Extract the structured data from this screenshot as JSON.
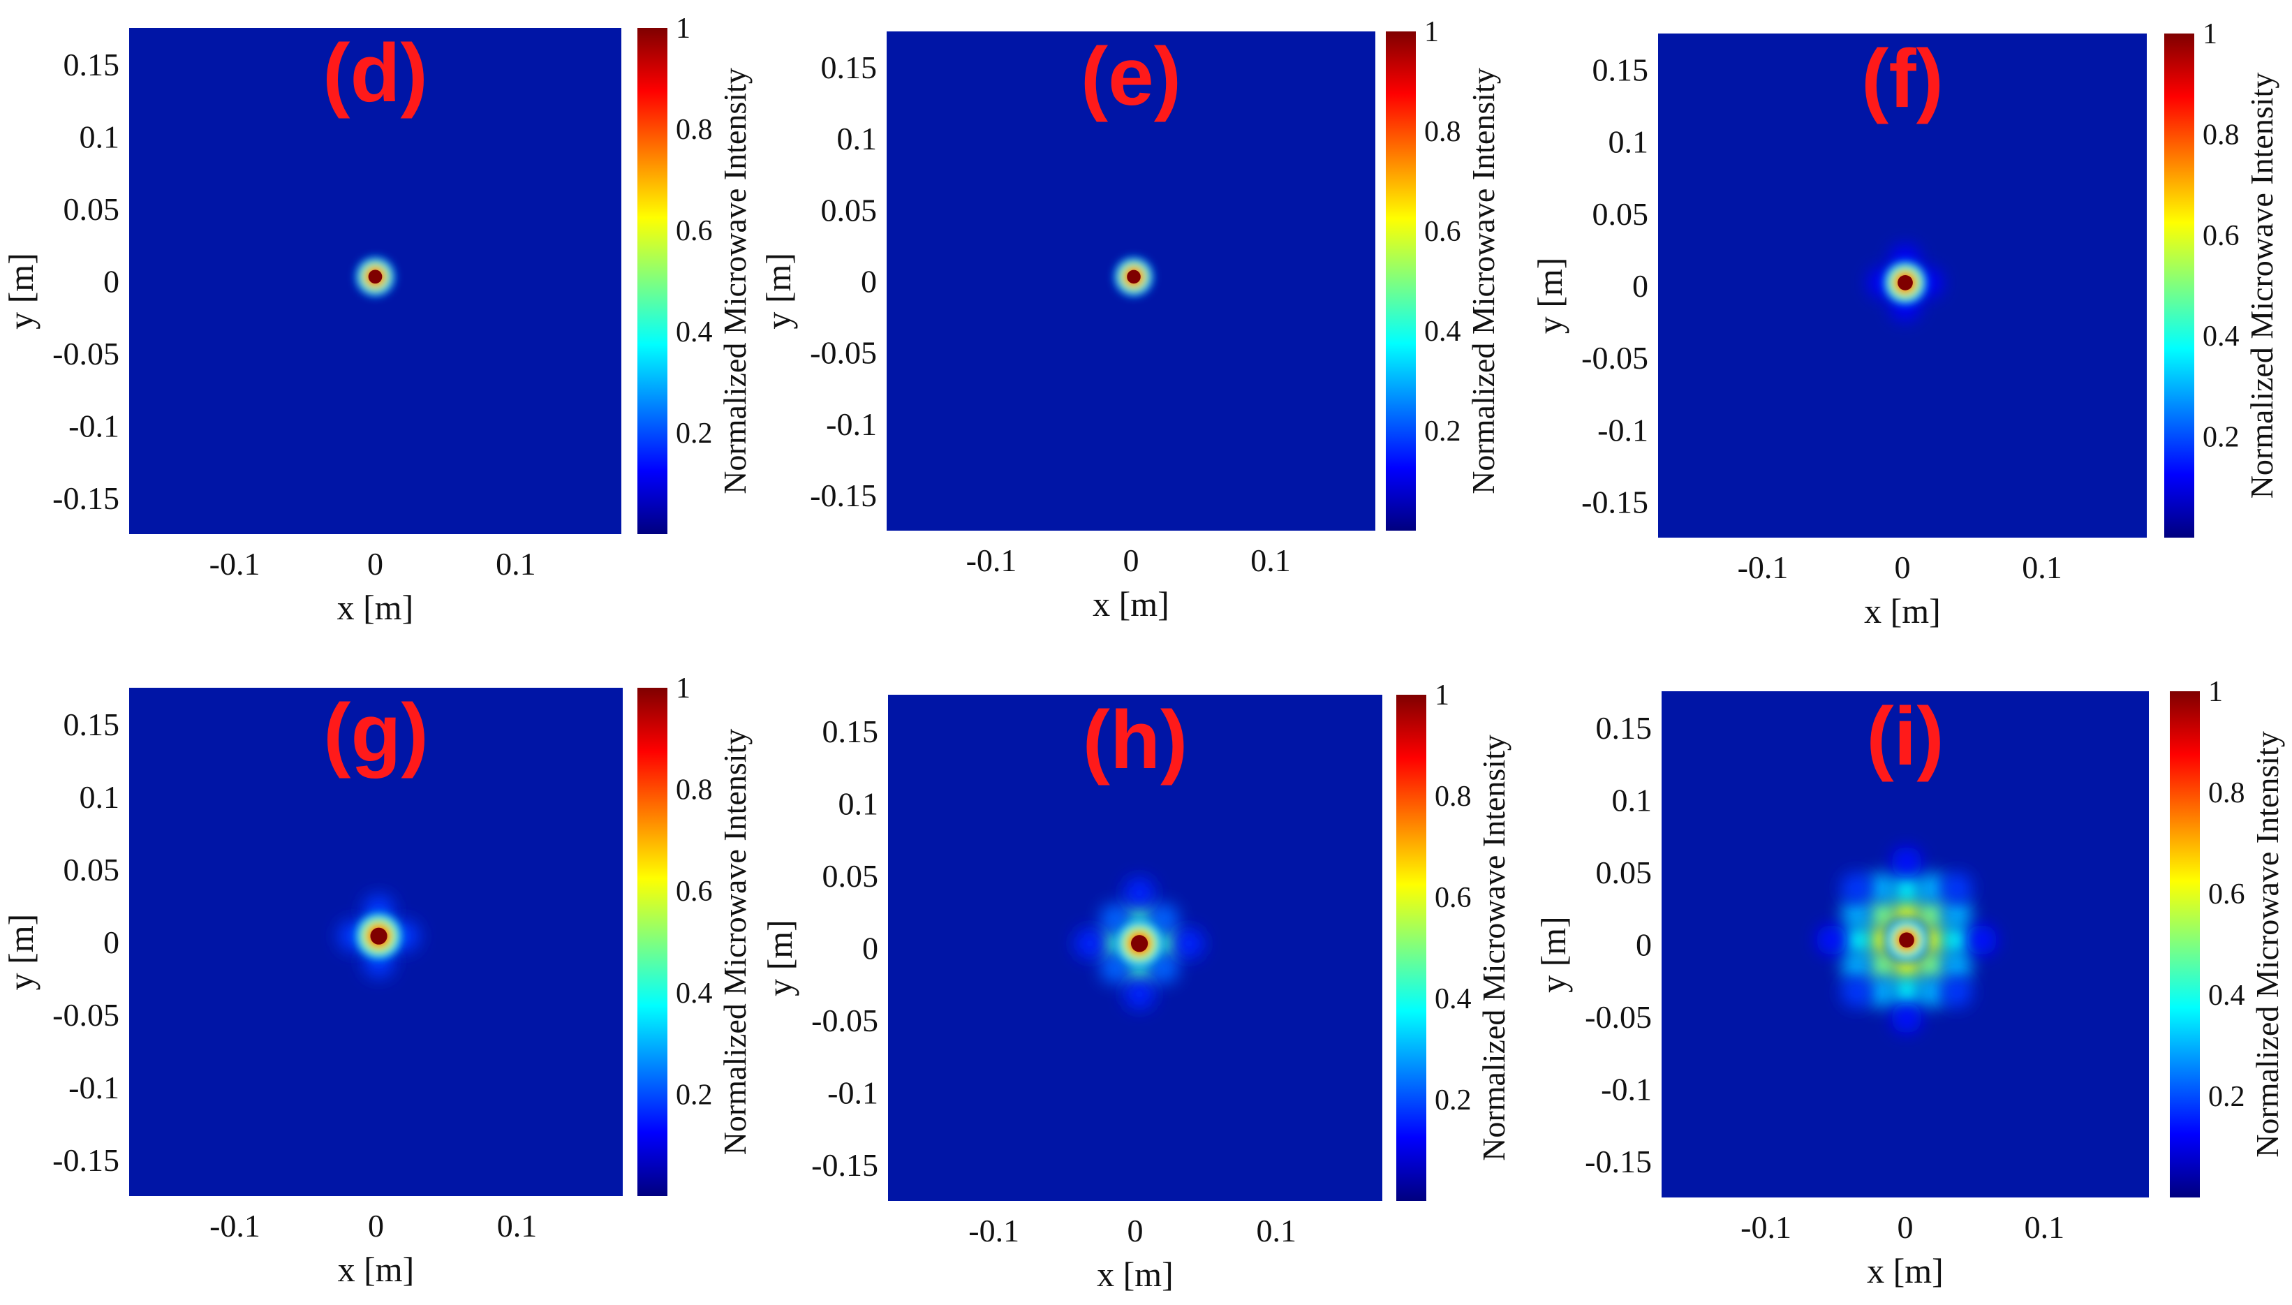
{
  "chart_data": [
    {
      "type": "heatmap",
      "panel": "(d)",
      "xlabel": "x  [m]",
      "ylabel": "y  [m]",
      "xlim": [
        -0.175,
        0.175
      ],
      "ylim": [
        -0.175,
        0.175
      ],
      "xticks": [
        -0.1,
        0,
        0.1
      ],
      "xtick_labels": [
        "-0.1",
        "0",
        "0.1"
      ],
      "yticks": [
        0.15,
        0.1,
        0.05,
        0,
        -0.05,
        -0.1,
        -0.15
      ],
      "ytick_labels": [
        "0.15",
        "0.1",
        "0.05",
        "0",
        "-0.05",
        "-0.1",
        "-0.15"
      ],
      "colorbar": {
        "label": "Normalized Microwave Intensity",
        "range": [
          0,
          1
        ],
        "ticks": [
          1,
          0.8,
          0.6,
          0.4,
          0.2
        ],
        "tick_labels": [
          "1",
          "0.8",
          "0.6",
          "0.4",
          "0.2"
        ],
        "colormap": "jet"
      },
      "peak": {
        "x": 0.0,
        "y": 0.003,
        "intensity": 1.0
      },
      "main_lobe_radius_m": 0.009,
      "sidelobes": []
    },
    {
      "type": "heatmap",
      "panel": "(e)",
      "xlabel": "x  [m]",
      "ylabel": "y  [m]",
      "xlim": [
        -0.175,
        0.175
      ],
      "ylim": [
        -0.175,
        0.175
      ],
      "xticks": [
        -0.1,
        0,
        0.1
      ],
      "xtick_labels": [
        "-0.1",
        "0",
        "0.1"
      ],
      "yticks": [
        0.15,
        0.1,
        0.05,
        0,
        -0.05,
        -0.1,
        -0.15
      ],
      "ytick_labels": [
        "0.15",
        "0.1",
        "0.05",
        "0",
        "-0.05",
        "-0.1",
        "-0.15"
      ],
      "colorbar": {
        "label": "Normalized Microwave Intensity",
        "range": [
          0,
          1
        ],
        "ticks": [
          1,
          0.8,
          0.6,
          0.4,
          0.2
        ],
        "tick_labels": [
          "1",
          "0.8",
          "0.6",
          "0.4",
          "0.2"
        ],
        "colormap": "jet"
      },
      "peak": {
        "x": 0.002,
        "y": 0.003,
        "intensity": 1.0
      },
      "main_lobe_radius_m": 0.009,
      "sidelobes": []
    },
    {
      "type": "heatmap",
      "panel": "(f)",
      "xlabel": "x  [m]",
      "ylabel": "y  [m]",
      "xlim": [
        -0.175,
        0.175
      ],
      "ylim": [
        -0.175,
        0.175
      ],
      "xticks": [
        -0.1,
        0,
        0.1
      ],
      "xtick_labels": [
        "-0.1",
        "0",
        "0.1"
      ],
      "yticks": [
        0.15,
        0.1,
        0.05,
        0,
        -0.05,
        -0.1,
        -0.15
      ],
      "ytick_labels": [
        "0.15",
        "0.1",
        "0.05",
        "0",
        "-0.05",
        "-0.1",
        "-0.15"
      ],
      "colorbar": {
        "label": "Normalized Microwave Intensity",
        "range": [
          0,
          1
        ],
        "ticks": [
          1,
          0.8,
          0.6,
          0.4,
          0.2
        ],
        "tick_labels": [
          "1",
          "0.8",
          "0.6",
          "0.4",
          "0.2"
        ],
        "colormap": "jet"
      },
      "peak": {
        "x": 0.002,
        "y": 0.002,
        "intensity": 1.0
      },
      "main_lobe_radius_m": 0.01,
      "sidelobes": [
        {
          "x": 0.018,
          "y": 0.002,
          "intensity": 0.12
        },
        {
          "x": -0.014,
          "y": 0.002,
          "intensity": 0.12
        },
        {
          "x": 0.002,
          "y": 0.018,
          "intensity": 0.12
        },
        {
          "x": 0.002,
          "y": -0.014,
          "intensity": 0.12
        }
      ]
    },
    {
      "type": "heatmap",
      "panel": "(g)",
      "xlabel": "x  [m]",
      "ylabel": "y  [m]",
      "xlim": [
        -0.175,
        0.175
      ],
      "ylim": [
        -0.175,
        0.175
      ],
      "xticks": [
        -0.1,
        0,
        0.1
      ],
      "xtick_labels": [
        "-0.1",
        "0",
        "0.1"
      ],
      "yticks": [
        0.15,
        0.1,
        0.05,
        0,
        -0.05,
        -0.1,
        -0.15
      ],
      "ytick_labels": [
        "0.15",
        "0.1",
        "0.05",
        "0",
        "-0.05",
        "-0.1",
        "-0.15"
      ],
      "colorbar": {
        "label": "Normalized Microwave Intensity",
        "range": [
          0,
          1
        ],
        "ticks": [
          1,
          0.8,
          0.6,
          0.4,
          0.2
        ],
        "tick_labels": [
          "1",
          "0.8",
          "0.6",
          "0.4",
          "0.2"
        ],
        "colormap": "jet"
      },
      "peak": {
        "x": 0.002,
        "y": 0.004,
        "intensity": 1.0
      },
      "main_lobe_radius_m": 0.011,
      "sidelobes": [
        {
          "x": 0.02,
          "y": 0.004,
          "intensity": 0.18
        },
        {
          "x": -0.016,
          "y": 0.004,
          "intensity": 0.18
        },
        {
          "x": 0.002,
          "y": 0.022,
          "intensity": 0.18
        },
        {
          "x": 0.002,
          "y": -0.014,
          "intensity": 0.18
        }
      ]
    },
    {
      "type": "heatmap",
      "panel": "(h)",
      "xlabel": "x  [m]",
      "ylabel": "y  [m]",
      "xlim": [
        -0.175,
        0.175
      ],
      "ylim": [
        -0.175,
        0.175
      ],
      "xticks": [
        -0.1,
        0,
        0.1
      ],
      "xtick_labels": [
        "-0.1",
        "0",
        "0.1"
      ],
      "yticks": [
        0.15,
        0.1,
        0.05,
        0,
        -0.05,
        -0.1,
        -0.15
      ],
      "ytick_labels": [
        "0.15",
        "0.1",
        "0.05",
        "0",
        "-0.05",
        "-0.1",
        "-0.15"
      ],
      "colorbar": {
        "label": "Normalized Microwave Intensity",
        "range": [
          0,
          1
        ],
        "ticks": [
          1,
          0.8,
          0.6,
          0.4,
          0.2
        ],
        "tick_labels": [
          "1",
          "0.8",
          "0.6",
          "0.4",
          "0.2"
        ],
        "colormap": "jet"
      },
      "peak": {
        "x": 0.003,
        "y": 0.003,
        "intensity": 1.0
      },
      "main_lobe_radius_m": 0.011,
      "sidelobes": [
        {
          "x": 0.02,
          "y": 0.003,
          "intensity": 0.45
        },
        {
          "x": -0.014,
          "y": 0.003,
          "intensity": 0.45
        },
        {
          "x": 0.003,
          "y": 0.02,
          "intensity": 0.45
        },
        {
          "x": 0.003,
          "y": -0.014,
          "intensity": 0.45
        },
        {
          "x": 0.02,
          "y": 0.02,
          "intensity": 0.22
        },
        {
          "x": -0.014,
          "y": 0.02,
          "intensity": 0.22
        },
        {
          "x": 0.02,
          "y": -0.014,
          "intensity": 0.22
        },
        {
          "x": -0.014,
          "y": -0.014,
          "intensity": 0.22
        },
        {
          "x": 0.038,
          "y": 0.003,
          "intensity": 0.16
        },
        {
          "x": -0.032,
          "y": 0.003,
          "intensity": 0.16
        },
        {
          "x": 0.003,
          "y": 0.038,
          "intensity": 0.16
        },
        {
          "x": 0.003,
          "y": -0.032,
          "intensity": 0.16
        }
      ]
    },
    {
      "type": "heatmap",
      "panel": "(i)",
      "xlabel": "x  [m]",
      "ylabel": "y  [m]",
      "xlim": [
        -0.175,
        0.175
      ],
      "ylim": [
        -0.175,
        0.175
      ],
      "xticks": [
        -0.1,
        0,
        0.1
      ],
      "xtick_labels": [
        "-0.1",
        "0",
        "0.1"
      ],
      "yticks": [
        0.15,
        0.1,
        0.05,
        0,
        -0.05,
        -0.1,
        -0.15
      ],
      "ytick_labels": [
        "0.15",
        "0.1",
        "0.05",
        "0",
        "-0.05",
        "-0.1",
        "-0.15"
      ],
      "colorbar": {
        "label": "Normalized Microwave Intensity",
        "range": [
          0,
          1
        ],
        "ticks": [
          1,
          0.8,
          0.6,
          0.4,
          0.2
        ],
        "tick_labels": [
          "1",
          "0.8",
          "0.6",
          "0.4",
          "0.2"
        ],
        "colormap": "jet"
      },
      "peak": {
        "x": 0.001,
        "y": 0.003,
        "intensity": 1.0
      },
      "main_lobe_radius_m": 0.01,
      "sidelobes": [
        {
          "x": 0.019,
          "y": 0.003,
          "intensity": 0.62
        },
        {
          "x": -0.017,
          "y": 0.003,
          "intensity": 0.62
        },
        {
          "x": 0.001,
          "y": 0.021,
          "intensity": 0.62
        },
        {
          "x": 0.001,
          "y": -0.015,
          "intensity": 0.62
        },
        {
          "x": 0.019,
          "y": 0.021,
          "intensity": 0.5
        },
        {
          "x": -0.017,
          "y": 0.021,
          "intensity": 0.5
        },
        {
          "x": 0.019,
          "y": -0.015,
          "intensity": 0.5
        },
        {
          "x": -0.017,
          "y": -0.015,
          "intensity": 0.5
        },
        {
          "x": 0.037,
          "y": 0.003,
          "intensity": 0.38
        },
        {
          "x": -0.035,
          "y": 0.003,
          "intensity": 0.38
        },
        {
          "x": 0.001,
          "y": 0.039,
          "intensity": 0.38
        },
        {
          "x": 0.001,
          "y": -0.033,
          "intensity": 0.38
        },
        {
          "x": 0.037,
          "y": 0.021,
          "intensity": 0.3
        },
        {
          "x": -0.035,
          "y": 0.021,
          "intensity": 0.3
        },
        {
          "x": 0.037,
          "y": -0.015,
          "intensity": 0.3
        },
        {
          "x": -0.035,
          "y": -0.015,
          "intensity": 0.3
        },
        {
          "x": 0.019,
          "y": 0.039,
          "intensity": 0.3
        },
        {
          "x": -0.017,
          "y": 0.039,
          "intensity": 0.3
        },
        {
          "x": 0.019,
          "y": -0.033,
          "intensity": 0.3
        },
        {
          "x": -0.017,
          "y": -0.033,
          "intensity": 0.3
        },
        {
          "x": 0.037,
          "y": 0.039,
          "intensity": 0.18
        },
        {
          "x": -0.035,
          "y": 0.039,
          "intensity": 0.18
        },
        {
          "x": 0.037,
          "y": -0.033,
          "intensity": 0.18
        },
        {
          "x": -0.035,
          "y": -0.033,
          "intensity": 0.18
        },
        {
          "x": 0.055,
          "y": 0.003,
          "intensity": 0.14
        },
        {
          "x": -0.053,
          "y": 0.003,
          "intensity": 0.14
        },
        {
          "x": 0.001,
          "y": 0.057,
          "intensity": 0.14
        },
        {
          "x": 0.001,
          "y": -0.051,
          "intensity": 0.14
        }
      ]
    }
  ],
  "colors": {
    "background_field": "#0015a6",
    "panel_label": "#ff1a1a",
    "colormap_stops": [
      "#00007f",
      "#0000ff",
      "#007fff",
      "#00ffff",
      "#7fff7f",
      "#ffff00",
      "#ff7f00",
      "#ff0000",
      "#7f0000"
    ]
  }
}
